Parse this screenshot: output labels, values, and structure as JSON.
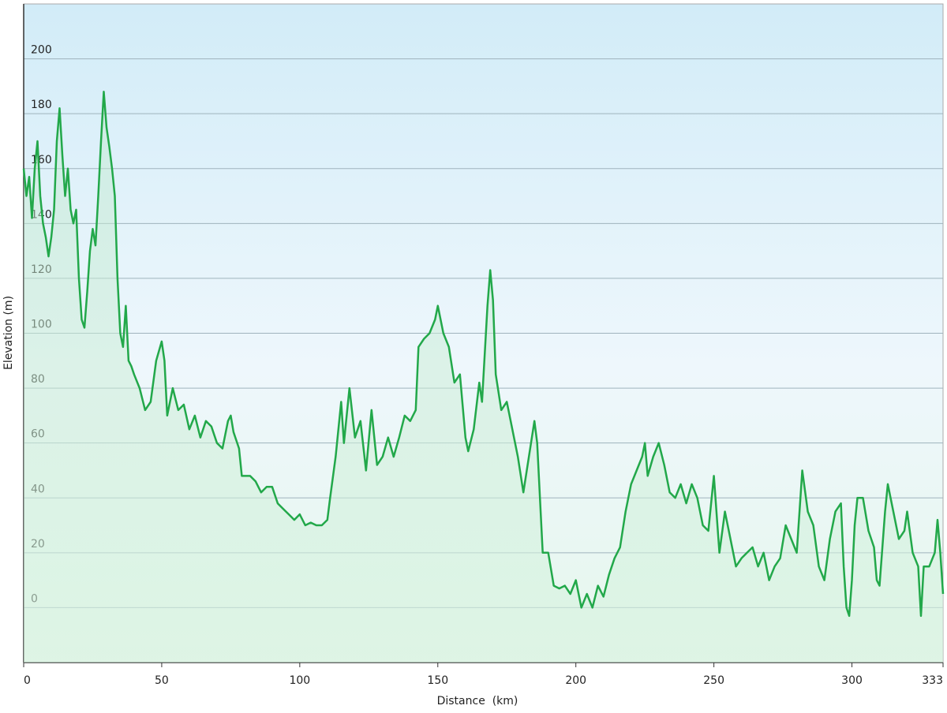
{
  "chart_data": {
    "type": "line",
    "x_label": "Distance  (km)",
    "y_label": "Elevation (m)",
    "x": [
      0,
      1,
      2,
      3,
      4,
      5,
      6,
      7,
      8,
      9,
      10,
      11,
      12,
      13,
      14,
      15,
      16,
      17,
      18,
      19,
      20,
      21,
      22,
      23,
      24,
      25,
      26,
      27,
      28,
      29,
      30,
      31,
      32,
      33,
      34,
      35,
      36,
      37,
      38,
      39,
      40,
      42,
      44,
      46,
      48,
      50,
      51,
      52,
      54,
      56,
      58,
      60,
      62,
      64,
      66,
      68,
      70,
      72,
      74,
      75,
      76,
      78,
      79,
      80,
      82,
      84,
      86,
      88,
      90,
      92,
      94,
      96,
      98,
      100,
      102,
      104,
      106,
      108,
      110,
      111,
      113,
      115,
      116,
      118,
      120,
      122,
      124,
      126,
      128,
      130,
      132,
      134,
      136,
      138,
      140,
      142,
      143,
      145,
      147,
      149,
      150,
      152,
      154,
      156,
      158,
      160,
      161,
      163,
      165,
      166,
      168,
      169,
      170,
      171,
      173,
      175,
      177,
      179,
      181,
      183,
      185,
      186,
      187,
      188,
      190,
      192,
      194,
      196,
      198,
      200,
      202,
      204,
      206,
      208,
      210,
      212,
      214,
      216,
      218,
      220,
      222,
      224,
      225,
      226,
      228,
      230,
      232,
      234,
      236,
      238,
      240,
      242,
      244,
      246,
      248,
      250,
      252,
      254,
      256,
      258,
      260,
      262,
      264,
      266,
      268,
      270,
      272,
      274,
      276,
      278,
      280,
      282,
      284,
      286,
      288,
      290,
      292,
      294,
      296,
      297,
      298,
      299,
      300,
      301,
      302,
      304,
      306,
      308,
      309,
      310,
      312,
      313,
      315,
      317,
      319,
      320,
      322,
      324,
      325,
      326,
      328,
      330,
      331,
      332,
      333
    ],
    "series": [
      {
        "name": "Elevation",
        "color": "#22a84a",
        "values": [
          160,
          150,
          157,
          142,
          160,
          170,
          150,
          140,
          135,
          128,
          135,
          145,
          170,
          182,
          165,
          150,
          160,
          145,
          140,
          145,
          120,
          105,
          102,
          115,
          130,
          138,
          132,
          150,
          170,
          188,
          175,
          168,
          160,
          150,
          120,
          100,
          95,
          110,
          90,
          88,
          85,
          80,
          72,
          75,
          90,
          97,
          90,
          70,
          80,
          72,
          74,
          65,
          70,
          62,
          68,
          66,
          60,
          58,
          68,
          70,
          64,
          58,
          48,
          48,
          48,
          46,
          42,
          44,
          44,
          38,
          36,
          34,
          32,
          34,
          30,
          31,
          30,
          30,
          32,
          40,
          55,
          75,
          60,
          80,
          62,
          68,
          50,
          72,
          52,
          55,
          62,
          55,
          62,
          70,
          68,
          72,
          95,
          98,
          100,
          105,
          110,
          100,
          95,
          82,
          85,
          62,
          57,
          65,
          82,
          75,
          110,
          123,
          112,
          85,
          72,
          75,
          65,
          55,
          42,
          55,
          68,
          60,
          40,
          20,
          20,
          8,
          7,
          8,
          5,
          10,
          0,
          5,
          0,
          8,
          4,
          12,
          18,
          22,
          35,
          45,
          50,
          55,
          60,
          48,
          55,
          60,
          52,
          42,
          40,
          45,
          38,
          45,
          40,
          30,
          28,
          48,
          20,
          35,
          25,
          15,
          18,
          20,
          22,
          15,
          20,
          10,
          15,
          18,
          30,
          25,
          20,
          50,
          35,
          30,
          15,
          10,
          25,
          35,
          38,
          15,
          0,
          -3,
          10,
          30,
          40,
          40,
          28,
          22,
          10,
          8,
          35,
          45,
          35,
          25,
          28,
          35,
          20,
          15,
          -3,
          15,
          15,
          20,
          32,
          20,
          5
        ]
      }
    ],
    "xlim": [
      0,
      333
    ],
    "ylim": [
      -20,
      220
    ],
    "xticks": [
      0,
      50,
      100,
      150,
      200,
      250,
      300,
      333
    ],
    "yticks": [
      0,
      20,
      40,
      60,
      80,
      100,
      120,
      140,
      160,
      180,
      200
    ],
    "grid": true
  }
}
